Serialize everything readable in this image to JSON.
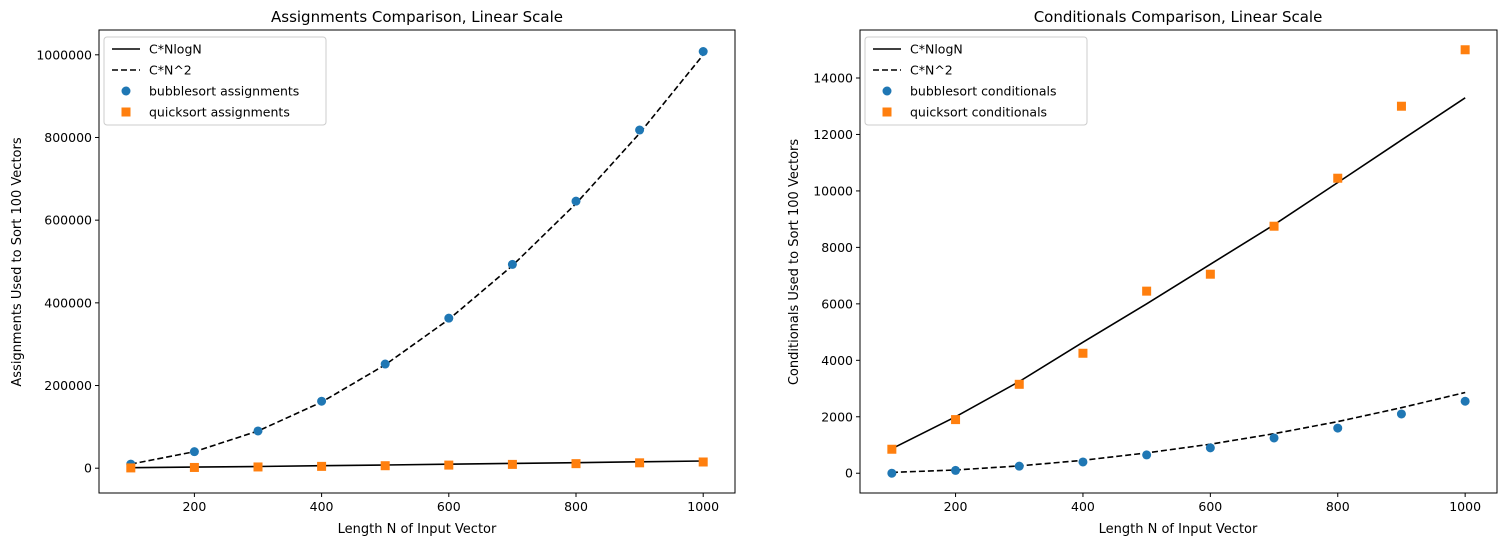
{
  "chart_data": [
    {
      "type": "scatter",
      "title": "Assignments Comparison, Linear Scale",
      "xlabel": "Length N of Input Vector",
      "ylabel": "Assignments Used to Sort 100 Vectors",
      "xlim": [
        50,
        1050
      ],
      "ylim": [
        -60000,
        1060000
      ],
      "xticks": [
        200,
        400,
        600,
        800,
        1000
      ],
      "yticks": [
        0,
        200000,
        400000,
        600000,
        800000,
        1000000
      ],
      "grid": false,
      "legend_position": "top-left",
      "series": [
        {
          "name": "C*NlogN",
          "kind": "line",
          "style": "solid",
          "color": "#000000",
          "x": [
            100,
            200,
            300,
            400,
            500,
            600,
            700,
            800,
            900,
            1000
          ],
          "y": [
            1100,
            2600,
            4200,
            6000,
            7700,
            9600,
            11500,
            13400,
            15400,
            17400
          ]
        },
        {
          "name": "C*N^2",
          "kind": "line",
          "style": "dashed",
          "color": "#000000",
          "x": [
            100,
            200,
            300,
            400,
            500,
            600,
            700,
            800,
            900,
            1000
          ],
          "y": [
            10000,
            40000,
            90000,
            160000,
            250000,
            360000,
            490000,
            640000,
            810000,
            1000000
          ]
        },
        {
          "name": "bubblesort assignments",
          "kind": "marker",
          "marker": "circle",
          "color": "#1f77b4",
          "x": [
            100,
            200,
            300,
            400,
            500,
            600,
            700,
            800,
            900,
            1000
          ],
          "y": [
            10000,
            40000,
            90000,
            162000,
            252000,
            363000,
            493000,
            646000,
            818000,
            1008000
          ]
        },
        {
          "name": "quicksort assignments",
          "kind": "marker",
          "marker": "square",
          "color": "#ff7f0e",
          "x": [
            100,
            200,
            300,
            400,
            500,
            600,
            700,
            800,
            900,
            1000
          ],
          "y": [
            700,
            1800,
            3000,
            4400,
            6000,
            7500,
            9200,
            11000,
            13000,
            15000
          ]
        }
      ]
    },
    {
      "type": "scatter",
      "title": "Conditionals Comparison, Linear Scale",
      "xlabel": "Length N of Input Vector",
      "ylabel": "Conditionals Used to Sort 100 Vectors",
      "xlim": [
        50,
        1050
      ],
      "ylim": [
        -700,
        15700
      ],
      "xticks": [
        200,
        400,
        600,
        800,
        1000
      ],
      "yticks": [
        0,
        2000,
        4000,
        6000,
        8000,
        10000,
        12000,
        14000
      ],
      "grid": false,
      "legend_position": "top-left",
      "series": [
        {
          "name": "C*NlogN",
          "kind": "line",
          "style": "solid",
          "color": "#000000",
          "x": [
            100,
            200,
            300,
            400,
            500,
            600,
            700,
            800,
            900,
            1000
          ],
          "y": [
            870,
            2000,
            3250,
            4640,
            6000,
            7400,
            8800,
            10300,
            11800,
            13300
          ]
        },
        {
          "name": "C*N^2",
          "kind": "line",
          "style": "dashed",
          "color": "#000000",
          "x": [
            100,
            200,
            300,
            400,
            500,
            600,
            700,
            800,
            900,
            1000
          ],
          "y": [
            30,
            115,
            260,
            460,
            720,
            1030,
            1400,
            1830,
            2320,
            2860
          ]
        },
        {
          "name": "bubblesort conditionals",
          "kind": "marker",
          "marker": "circle",
          "color": "#1f77b4",
          "x": [
            100,
            200,
            300,
            400,
            500,
            600,
            700,
            800,
            900,
            1000
          ],
          "y": [
            0,
            100,
            250,
            400,
            650,
            900,
            1250,
            1600,
            2100,
            2550
          ]
        },
        {
          "name": "quicksort conditionals",
          "kind": "marker",
          "marker": "square",
          "color": "#ff7f0e",
          "x": [
            100,
            200,
            300,
            400,
            500,
            600,
            700,
            800,
            900,
            1000
          ],
          "y": [
            850,
            1900,
            3150,
            4250,
            6450,
            7050,
            8750,
            10450,
            13000,
            15000
          ]
        }
      ]
    }
  ]
}
